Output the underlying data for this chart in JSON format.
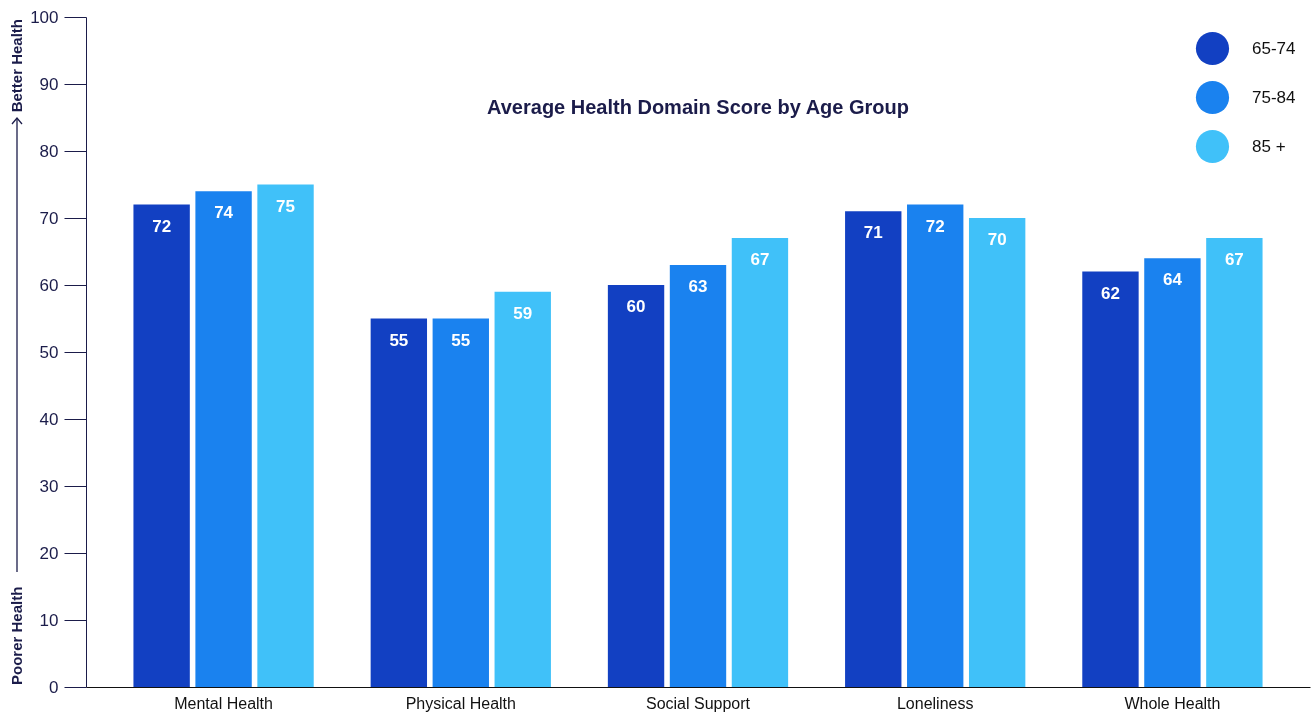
{
  "chart_data": {
    "type": "bar",
    "title": "Average Health Domain Score by Age Group",
    "categories": [
      "Mental Health",
      "Physical Health",
      "Social Support",
      "Loneliness",
      "Whole Health"
    ],
    "series": [
      {
        "name": "65-74",
        "color": "#1240c2",
        "values": [
          72,
          55,
          60,
          71,
          62
        ]
      },
      {
        "name": "75-84",
        "color": "#1a82ef",
        "values": [
          74,
          55,
          63,
          72,
          64
        ]
      },
      {
        "name": "85 +",
        "color": "#40c1f9",
        "values": [
          75,
          59,
          67,
          70,
          67
        ]
      }
    ],
    "ylim": [
      0,
      100
    ],
    "yticks": [
      0,
      10,
      20,
      30,
      40,
      50,
      60,
      70,
      80,
      90,
      100
    ],
    "annotations": [
      "Poorer Health",
      "Better Health"
    ],
    "data_labels": true,
    "legend": "top right",
    "grid": false
  }
}
